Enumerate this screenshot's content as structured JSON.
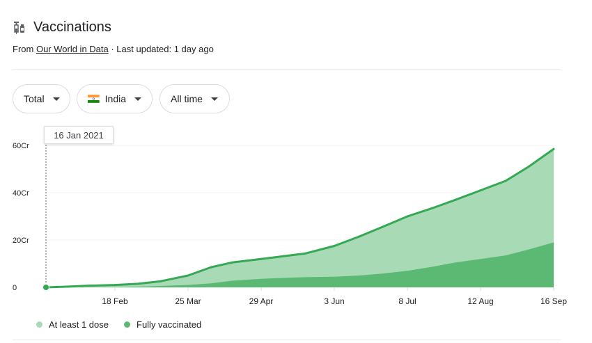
{
  "header": {
    "icon": "syringe-icon",
    "title": "Vaccinations",
    "source_prefix": "From ",
    "source_link": "Our World in Data",
    "source_suffix": " · Last updated: 1 day ago"
  },
  "filters": {
    "metric": "Total",
    "country": "India",
    "country_flag": "india-flag-icon",
    "range": "All time"
  },
  "tooltip": {
    "date": "16 Jan 2021"
  },
  "colors": {
    "dose_fill": "#a8dab5",
    "full_fill": "#5bb974",
    "line": "#34a853",
    "grid": "#f1f3f4",
    "text_secondary": "#3c4043"
  },
  "chart_data": {
    "type": "area",
    "x": [
      "2021-01-16",
      "2021-01-26",
      "2021-02-05",
      "2021-02-18",
      "2021-03-01",
      "2021-03-12",
      "2021-03-25",
      "2021-04-05",
      "2021-04-15",
      "2021-04-29",
      "2021-05-10",
      "2021-05-20",
      "2021-06-03",
      "2021-06-15",
      "2021-06-26",
      "2021-07-08",
      "2021-07-20",
      "2021-07-31",
      "2021-08-12",
      "2021-08-24",
      "2021-09-04",
      "2021-09-16"
    ],
    "x_ticks": [
      "2021-02-18",
      "2021-03-25",
      "2021-04-29",
      "2021-06-03",
      "2021-07-08",
      "2021-08-12",
      "2021-09-16"
    ],
    "x_tick_labels": [
      "18 Feb",
      "25 Mar",
      "29 Apr",
      "3 Jun",
      "8 Jul",
      "12 Aug",
      "16 Sep"
    ],
    "y_ticks": [
      0,
      20,
      40,
      60
    ],
    "y_tick_labels": [
      "0",
      "20Cr",
      "40Cr",
      "60Cr"
    ],
    "ylim": [
      0,
      60
    ],
    "y_unit": "Cr",
    "series": [
      {
        "name": "At least 1 dose",
        "values": [
          0,
          0.3,
          0.7,
          1.0,
          1.5,
          2.6,
          5.0,
          8.5,
          10.5,
          12.0,
          13.2,
          14.3,
          17.5,
          21.5,
          25.5,
          30.0,
          33.5,
          37.0,
          41.0,
          45.0,
          51.0,
          58.5
        ]
      },
      {
        "name": "Fully vaccinated",
        "values": [
          0,
          0,
          0,
          0.1,
          0.3,
          0.6,
          1.0,
          1.7,
          2.8,
          3.6,
          4.0,
          4.3,
          4.5,
          5.0,
          5.8,
          7.0,
          8.7,
          10.5,
          12.0,
          13.5,
          16.0,
          19.0
        ]
      }
    ],
    "legend_position": "bottom-left",
    "grid": true
  }
}
